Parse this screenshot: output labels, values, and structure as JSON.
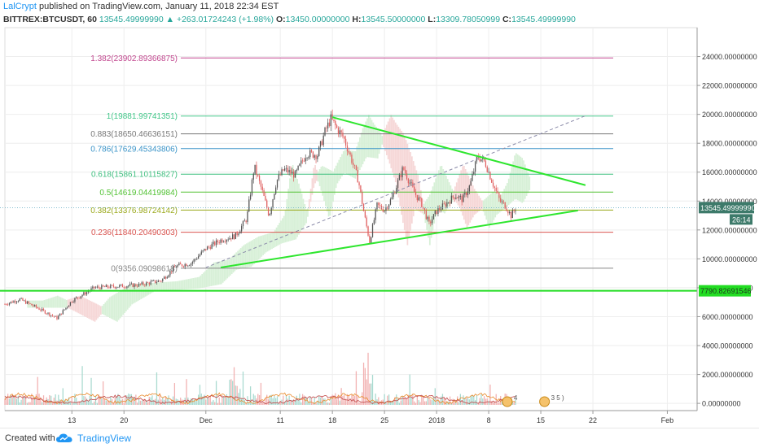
{
  "header": {
    "author": "LalCrypt",
    "published": " published on TradingView.com, January 11, 2018 22:34 EST",
    "symbol": "BITTREX:BTCUSDT, 60",
    "price": "13545.49999990",
    "arrow": "▲",
    "change": "+263.01724243 (+1.98%)",
    "o_label": "O:",
    "o_value": "13450.00000000",
    "h_label": "H:",
    "h_value": "13545.50000000",
    "l_label": "L:",
    "l_value": "13309.78050999",
    "c_label": "C:",
    "c_value": "13545.49999990"
  },
  "footer": {
    "created_with": "Created with",
    "brand": "TradingView"
  },
  "colors": {
    "grid": "#eeeeee",
    "axis_text": "#333333",
    "up_candle": "#555555",
    "down_candle": "#e06060",
    "trend": "#2ee62e",
    "support": "#22dd22",
    "cloud_green": "#d7f0d7",
    "cloud_red": "#f6d7d7"
  },
  "chart_data": {
    "type": "candlestick",
    "ylim": [
      -500,
      26000
    ],
    "y_ticks": [
      0,
      2000,
      4000,
      6000,
      8000,
      10000,
      12000,
      14000,
      16000,
      18000,
      20000,
      22000,
      24000
    ],
    "y_tick_labels": [
      "0.00000000",
      "2000.00000000",
      "4000.00000000",
      "6000.00000000",
      "8000.00000000",
      "10000.00000000",
      "12000.00000000",
      "14000.00000000",
      "16000.00000000",
      "18000.00000000",
      "20000.00000000",
      "22000.00000000",
      "24000.00000000"
    ],
    "x_ticks": [
      {
        "label": "13",
        "day": 13
      },
      {
        "label": "20",
        "day": 20
      },
      {
        "label": "Dec",
        "day": 31
      },
      {
        "label": "11",
        "day": 41
      },
      {
        "label": "18",
        "day": 48
      },
      {
        "label": "25",
        "day": 55
      },
      {
        "label": "2018",
        "day": 62
      },
      {
        "label": "8",
        "day": 69
      },
      {
        "label": "15",
        "day": 76
      },
      {
        "label": "22",
        "day": 83
      },
      {
        "label": "Feb",
        "day": 93
      }
    ],
    "price_path": [
      [
        0,
        6400
      ],
      [
        3,
        6700
      ],
      [
        6,
        7200
      ],
      [
        8,
        6700
      ],
      [
        11,
        5900
      ],
      [
        13,
        7100
      ],
      [
        16,
        8000
      ],
      [
        19,
        8100
      ],
      [
        22,
        8200
      ],
      [
        25,
        8500
      ],
      [
        27,
        9500
      ],
      [
        29,
        9700
      ],
      [
        31,
        10700
      ],
      [
        33,
        11300
      ],
      [
        35,
        11600
      ],
      [
        36.5,
        12800
      ],
      [
        37.5,
        16400
      ],
      [
        38.5,
        14800
      ],
      [
        39.5,
        13000
      ],
      [
        40.5,
        15400
      ],
      [
        41.5,
        16200
      ],
      [
        43,
        15800
      ],
      [
        44.5,
        17300
      ],
      [
        46,
        17200
      ],
      [
        47,
        18800
      ],
      [
        47.8,
        19700
      ],
      [
        48.5,
        19100
      ],
      [
        49.5,
        18400
      ],
      [
        50.5,
        17000
      ],
      [
        51.5,
        15400
      ],
      [
        52.3,
        13000
      ],
      [
        53,
        11200
      ],
      [
        54,
        13700
      ],
      [
        55,
        13400
      ],
      [
        56,
        14200
      ],
      [
        57.5,
        16300
      ],
      [
        59,
        14600
      ],
      [
        60,
        13800
      ],
      [
        61,
        12400
      ],
      [
        62,
        13300
      ],
      [
        63,
        13700
      ],
      [
        64.5,
        14400
      ],
      [
        65.5,
        14100
      ],
      [
        66.5,
        15100
      ],
      [
        67.5,
        17100
      ],
      [
        68.5,
        16700
      ],
      [
        69.5,
        15300
      ],
      [
        70.5,
        14000
      ],
      [
        71.2,
        13700
      ],
      [
        72,
        13000
      ],
      [
        72.7,
        13550
      ]
    ],
    "fib_levels": [
      {
        "ratio": "1.382",
        "value": 23902.89366875,
        "label": "1.382(23902.89366875)",
        "color": "#c2478f"
      },
      {
        "ratio": "1",
        "value": 19881.99741351,
        "label": "1(19881.99741351)",
        "color": "#43c78a"
      },
      {
        "ratio": "0.883",
        "value": 18650.46636151,
        "label": "0.883(18650.46636151)",
        "color": "#777777"
      },
      {
        "ratio": "0.786",
        "value": 17629.45343806,
        "label": "0.786(17629.45343806)",
        "color": "#3b94c8"
      },
      {
        "ratio": "0.618",
        "value": 15861.10115827,
        "label": "0.618(15861.10115827)",
        "color": "#3fbf7f"
      },
      {
        "ratio": "0.5",
        "value": 14619.04419984,
        "label": "0.5(14619.04419984)",
        "color": "#52c234"
      },
      {
        "ratio": "0.382",
        "value": 13376.98724142,
        "label": "0.382(13376.98724142)",
        "color": "#9aa81a"
      },
      {
        "ratio": "0.236",
        "value": 11840.20490303,
        "label": "0.236(11840.20490303)",
        "color": "#d9534f"
      },
      {
        "ratio": "0",
        "value": 9356.09098618,
        "label": "0(9356.09098618)",
        "color": "#888888"
      }
    ],
    "trendlines": [
      {
        "from": [
          48,
          19800
        ],
        "to": [
          82,
          15100
        ]
      },
      {
        "from": [
          33,
          9400
        ],
        "to": [
          81,
          13350
        ]
      }
    ],
    "dashed_line": {
      "from": [
        31,
        9400
      ],
      "to": [
        82,
        19900
      ]
    },
    "support": {
      "value": 7790.82691546,
      "label": "7790.82691546"
    },
    "last_price": {
      "value": 13545.4999999,
      "label": "13545.49999990",
      "countdown": "26:14"
    },
    "volume_note": "volume bars drawn at bottom of price pane",
    "event_badges": [
      {
        "day": 71.5,
        "text": "4"
      },
      {
        "day": 76.5,
        "text": "3 5 )"
      }
    ]
  }
}
